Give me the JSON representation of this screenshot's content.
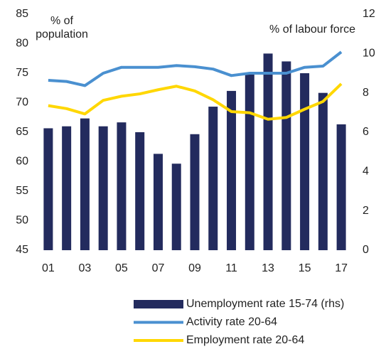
{
  "chart_data": {
    "type": "bar-line",
    "left_axis_label": "% of population",
    "right_axis_label": "% of labour force",
    "categories": [
      "01",
      null,
      "03",
      null,
      "05",
      null,
      "07",
      null,
      "09",
      null,
      "11",
      null,
      "13",
      null,
      "15",
      null,
      "17"
    ],
    "series": [
      {
        "name": "Unemployment rate 15-74 (rhs)",
        "type": "bar",
        "axis": "y2",
        "color": "#232b5e",
        "values": [
          6.2,
          6.3,
          6.7,
          6.3,
          6.5,
          6.0,
          4.9,
          4.4,
          5.9,
          7.3,
          8.1,
          9.0,
          10.0,
          9.6,
          9.0,
          8.0,
          6.4
        ]
      },
      {
        "name": "Activity rate 20-64",
        "type": "line",
        "axis": "y",
        "color": "#4a90d0",
        "values": [
          73.8,
          73.6,
          72.9,
          75.0,
          76.0,
          76.0,
          76.0,
          76.3,
          76.1,
          75.7,
          74.6,
          75.0,
          75.0,
          75.0,
          76.0,
          76.2,
          78.6
        ]
      },
      {
        "name": "Employment rate 20-64",
        "type": "line",
        "axis": "y",
        "color": "#ffd700",
        "values": [
          69.5,
          69.0,
          68.1,
          70.4,
          71.1,
          71.5,
          72.2,
          72.8,
          72.0,
          70.5,
          68.5,
          68.3,
          67.2,
          67.5,
          68.9,
          70.2,
          73.2
        ]
      }
    ],
    "ylim": [
      45,
      85
    ],
    "yticks": [
      45,
      50,
      55,
      60,
      65,
      70,
      75,
      80,
      85
    ],
    "y2lim": [
      0,
      12
    ],
    "y2ticks": [
      0,
      2,
      4,
      6,
      8,
      10,
      12
    ],
    "grid": false
  }
}
